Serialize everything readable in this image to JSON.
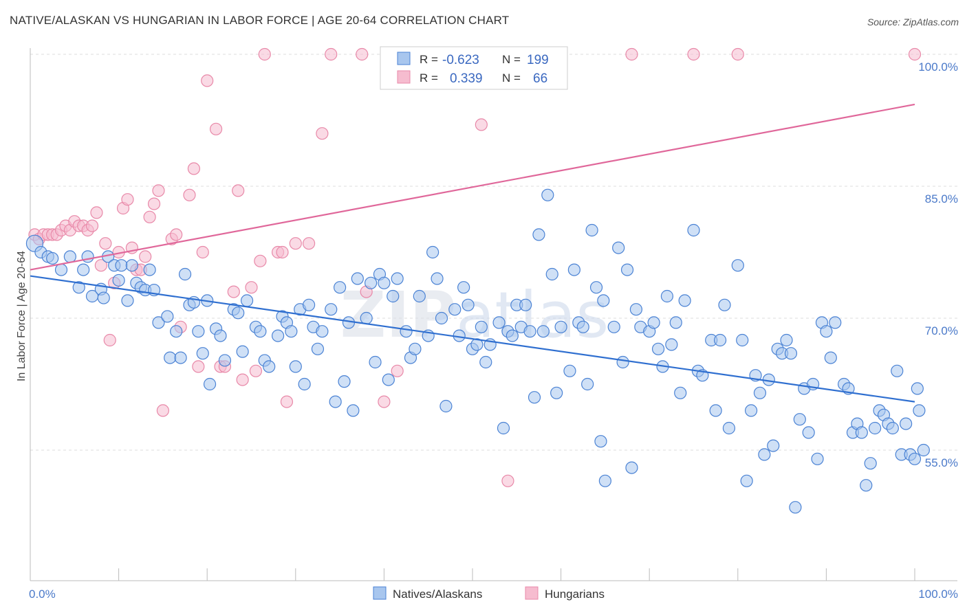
{
  "title": "NATIVE/ALASKAN VS HUNGARIAN IN LABOR FORCE | AGE 20-64 CORRELATION CHART",
  "source": "Source: ZipAtlas.com",
  "watermark": "ZIPatlas",
  "colors": {
    "blue_fill": "#a8c6ee",
    "blue_stroke": "#4a82d4",
    "blue_line": "#2f6fd0",
    "pink_fill": "#f6bccf",
    "pink_stroke": "#e888a8",
    "pink_line": "#e0679a",
    "grid": "#dddddd",
    "tick_text": "#4a79c9"
  },
  "legend": {
    "rows": [
      {
        "r_label": "R =",
        "r_value": "-0.623",
        "n_label": "N =",
        "n_value": "199"
      },
      {
        "r_label": "R =",
        "r_value": "0.339",
        "n_label": "N =",
        "n_value": "66"
      }
    ]
  },
  "bottom_legend": [
    "Natives/Alaskans",
    "Hungarians"
  ],
  "chart_data": {
    "type": "scatter",
    "ylabel": "In Labor Force | Age 20-64",
    "xlabel": "",
    "xlim": [
      0,
      100
    ],
    "ylim": [
      38,
      100
    ],
    "x_tick_labels": {
      "left": "0.0%",
      "right": "100.0%"
    },
    "y_ticks": [
      {
        "value": 100,
        "label": "100.0%"
      },
      {
        "value": 85,
        "label": "85.0%"
      },
      {
        "value": 70,
        "label": "70.0%"
      },
      {
        "value": 55,
        "label": "55.0%"
      }
    ],
    "grid": true,
    "series": [
      {
        "name": "Natives/Alaskans",
        "color": "blue",
        "trend": {
          "x": [
            0,
            100
          ],
          "y": [
            74.8,
            60.5
          ]
        },
        "points": [
          [
            0.5,
            78.5
          ],
          [
            1.2,
            77.5
          ],
          [
            2,
            77
          ],
          [
            2.5,
            76.8
          ],
          [
            3.5,
            75.5
          ],
          [
            4.5,
            77
          ],
          [
            5.5,
            73.5
          ],
          [
            6,
            75.5
          ],
          [
            6.5,
            77
          ],
          [
            7,
            72.5
          ],
          [
            8,
            73.3
          ],
          [
            8.3,
            72.3
          ],
          [
            8.8,
            77
          ],
          [
            9.5,
            76
          ],
          [
            10,
            74.3
          ],
          [
            10.3,
            76
          ],
          [
            11,
            72
          ],
          [
            11.5,
            76
          ],
          [
            12,
            74
          ],
          [
            12.5,
            73.5
          ],
          [
            13,
            73.2
          ],
          [
            13.5,
            75.5
          ],
          [
            14,
            73.2
          ],
          [
            14.5,
            69.5
          ],
          [
            15.5,
            70.2
          ],
          [
            15.8,
            65.5
          ],
          [
            16.5,
            68.5
          ],
          [
            17,
            65.5
          ],
          [
            17.5,
            75
          ],
          [
            18,
            71.5
          ],
          [
            18.5,
            71.8
          ],
          [
            19,
            68.5
          ],
          [
            19.5,
            66
          ],
          [
            20,
            72
          ],
          [
            20.3,
            62.5
          ],
          [
            21,
            68.8
          ],
          [
            21.5,
            68
          ],
          [
            22,
            65.2
          ],
          [
            23,
            71
          ],
          [
            23.5,
            70.6
          ],
          [
            24,
            66.2
          ],
          [
            24.5,
            72
          ],
          [
            25.5,
            69
          ],
          [
            26,
            68.5
          ],
          [
            26.5,
            65.2
          ],
          [
            27,
            64.5
          ],
          [
            28,
            68
          ],
          [
            28.5,
            70.2
          ],
          [
            29,
            69.5
          ],
          [
            29.5,
            68.5
          ],
          [
            30,
            64.5
          ],
          [
            30.5,
            71
          ],
          [
            31,
            62.5
          ],
          [
            31.5,
            71.5
          ],
          [
            32,
            69
          ],
          [
            32.5,
            66.5
          ],
          [
            33,
            68.5
          ],
          [
            34,
            71
          ],
          [
            34.5,
            60.5
          ],
          [
            35,
            73.5
          ],
          [
            35.5,
            62.8
          ],
          [
            36,
            69.5
          ],
          [
            36.5,
            59.5
          ],
          [
            37,
            74.5
          ],
          [
            38,
            70
          ],
          [
            38.5,
            74
          ],
          [
            39,
            65
          ],
          [
            39.5,
            75
          ],
          [
            40,
            74
          ],
          [
            40.5,
            63
          ],
          [
            41,
            72.5
          ],
          [
            41.5,
            74.5
          ],
          [
            42.5,
            68.5
          ],
          [
            43,
            65.5
          ],
          [
            43.5,
            66.5
          ],
          [
            44,
            72.5
          ],
          [
            45,
            68
          ],
          [
            45.5,
            77.5
          ],
          [
            46,
            74.5
          ],
          [
            46.5,
            70
          ],
          [
            47,
            60
          ],
          [
            48,
            71
          ],
          [
            48.5,
            68
          ],
          [
            49,
            73.5
          ],
          [
            49.5,
            71.5
          ],
          [
            50,
            66.5
          ],
          [
            50.5,
            67
          ],
          [
            51,
            69
          ],
          [
            51.5,
            65
          ],
          [
            52,
            67
          ],
          [
            53,
            69.5
          ],
          [
            53.5,
            57.5
          ],
          [
            54,
            68.5
          ],
          [
            54.5,
            68
          ],
          [
            55,
            71.5
          ],
          [
            55.5,
            69
          ],
          [
            56,
            71.5
          ],
          [
            56.5,
            68.5
          ],
          [
            57,
            61
          ],
          [
            57.5,
            79.5
          ],
          [
            58,
            68.5
          ],
          [
            58.5,
            84
          ],
          [
            59,
            75
          ],
          [
            59.5,
            61.5
          ],
          [
            60,
            69
          ],
          [
            61,
            64
          ],
          [
            61.5,
            75.5
          ],
          [
            62,
            69.5
          ],
          [
            62.5,
            69
          ],
          [
            63,
            62.5
          ],
          [
            63.5,
            80
          ],
          [
            64,
            73.5
          ],
          [
            64.5,
            56
          ],
          [
            64.8,
            72
          ],
          [
            65,
            51.5
          ],
          [
            66,
            69
          ],
          [
            66.5,
            78
          ],
          [
            67,
            65
          ],
          [
            67.5,
            75.5
          ],
          [
            68,
            53
          ],
          [
            68.5,
            71
          ],
          [
            69,
            69
          ],
          [
            70,
            68.5
          ],
          [
            70.5,
            69.5
          ],
          [
            71,
            66.5
          ],
          [
            71.5,
            64.5
          ],
          [
            72,
            72.5
          ],
          [
            72.5,
            67
          ],
          [
            73,
            69.5
          ],
          [
            73.5,
            61.5
          ],
          [
            74,
            72
          ],
          [
            75,
            80
          ],
          [
            75.5,
            64
          ],
          [
            76,
            63.5
          ],
          [
            77,
            67.5
          ],
          [
            77.5,
            59.5
          ],
          [
            78,
            67.5
          ],
          [
            78.5,
            71.5
          ],
          [
            79,
            57.5
          ],
          [
            80,
            76
          ],
          [
            80.5,
            67.5
          ],
          [
            81,
            51.5
          ],
          [
            81.5,
            59.5
          ],
          [
            82,
            63.5
          ],
          [
            82.5,
            61.5
          ],
          [
            83,
            54.5
          ],
          [
            83.5,
            63
          ],
          [
            84,
            55.5
          ],
          [
            84.5,
            66.5
          ],
          [
            85,
            66
          ],
          [
            85.5,
            67.5
          ],
          [
            86,
            66
          ],
          [
            86.5,
            48.5
          ],
          [
            87,
            58.5
          ],
          [
            87.5,
            62
          ],
          [
            88,
            57
          ],
          [
            88.5,
            62.5
          ],
          [
            89,
            54
          ],
          [
            89.5,
            69.5
          ],
          [
            90,
            68.5
          ],
          [
            90.5,
            65.5
          ],
          [
            91,
            69.5
          ],
          [
            92,
            62.5
          ],
          [
            92.5,
            62
          ],
          [
            93,
            57
          ],
          [
            93.5,
            58
          ],
          [
            94,
            57
          ],
          [
            94.5,
            51
          ],
          [
            95,
            53.5
          ],
          [
            95.5,
            57.5
          ],
          [
            96,
            59.5
          ],
          [
            96.5,
            59
          ],
          [
            97,
            58
          ],
          [
            97.5,
            57.5
          ],
          [
            98,
            64
          ],
          [
            98.5,
            54.5
          ],
          [
            99,
            58
          ],
          [
            99.5,
            54.5
          ],
          [
            100,
            54
          ],
          [
            100.3,
            62
          ],
          [
            100.5,
            59.5
          ],
          [
            101,
            55
          ]
        ]
      },
      {
        "name": "Hungarians",
        "color": "pink",
        "trend": {
          "x": [
            0,
            100
          ],
          "y": [
            75.5,
            94.3
          ]
        },
        "points": [
          [
            0.5,
            79.5
          ],
          [
            1,
            79
          ],
          [
            1.5,
            79.5
          ],
          [
            2,
            79.5
          ],
          [
            2.5,
            79.5
          ],
          [
            3,
            79.5
          ],
          [
            3.5,
            80
          ],
          [
            4,
            80.5
          ],
          [
            4.5,
            80
          ],
          [
            5,
            81
          ],
          [
            5.5,
            80.5
          ],
          [
            6,
            80.5
          ],
          [
            6.5,
            80
          ],
          [
            7,
            80.5
          ],
          [
            7.5,
            82
          ],
          [
            8,
            76
          ],
          [
            8.5,
            78.5
          ],
          [
            9,
            67.5
          ],
          [
            9.5,
            74
          ],
          [
            10,
            77.5
          ],
          [
            10.5,
            82.5
          ],
          [
            11,
            83.5
          ],
          [
            11.5,
            78
          ],
          [
            12,
            75.5
          ],
          [
            12.5,
            75.5
          ],
          [
            13,
            77
          ],
          [
            13.5,
            81.5
          ],
          [
            14,
            83
          ],
          [
            14.5,
            84.5
          ],
          [
            15,
            59.5
          ],
          [
            16,
            79
          ],
          [
            16.5,
            79.5
          ],
          [
            17,
            69
          ],
          [
            18,
            84
          ],
          [
            18.5,
            87
          ],
          [
            19,
            64.5
          ],
          [
            19.5,
            77.5
          ],
          [
            20,
            97
          ],
          [
            21,
            91.5
          ],
          [
            21.5,
            64.5
          ],
          [
            22,
            64.5
          ],
          [
            23,
            73
          ],
          [
            23.5,
            84.5
          ],
          [
            24,
            63
          ],
          [
            25,
            73.5
          ],
          [
            25.5,
            64
          ],
          [
            26,
            76.5
          ],
          [
            26.5,
            100
          ],
          [
            28,
            77.5
          ],
          [
            28.5,
            77.5
          ],
          [
            29,
            60.5
          ],
          [
            30,
            78.5
          ],
          [
            31.5,
            78.5
          ],
          [
            33,
            91
          ],
          [
            34,
            100
          ],
          [
            38,
            73
          ],
          [
            37.5,
            100
          ],
          [
            40,
            60.5
          ],
          [
            41.5,
            64
          ],
          [
            51,
            92
          ],
          [
            54,
            51.5
          ],
          [
            68,
            100
          ],
          [
            75,
            100
          ],
          [
            80,
            100
          ],
          [
            100,
            100
          ]
        ]
      }
    ]
  }
}
